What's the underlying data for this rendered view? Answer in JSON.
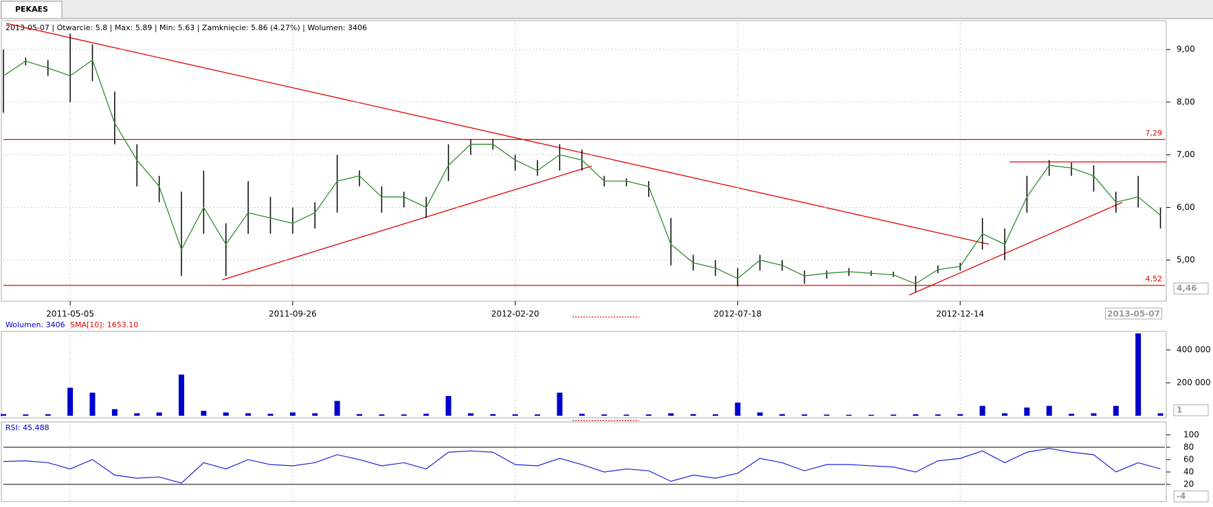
{
  "tab": "PEKAES",
  "chart_data": [
    {
      "type": "range",
      "header": "2013-05-07 | Otwarcie: 5.8 | Max: 5.89 | Min: 5.63 | Zamknięcie: 5.86 (4.27%)  | Wolumen: 3406",
      "categories": [
        null,
        null,
        null,
        "2011-05-05",
        null,
        null,
        null,
        null,
        null,
        null,
        null,
        null,
        null,
        "2011-09-26",
        null,
        null,
        null,
        null,
        null,
        null,
        null,
        null,
        null,
        "2012-02-20",
        null,
        null,
        null,
        null,
        null,
        null,
        null,
        null,
        null,
        "2012-07-18",
        null,
        null,
        null,
        null,
        null,
        null,
        null,
        null,
        null,
        "2012-12-14",
        null,
        null,
        null,
        null,
        null,
        null,
        null,
        null,
        "2013-05-07"
      ],
      "high": [
        9.0,
        8.85,
        8.8,
        9.3,
        9.1,
        8.2,
        7.2,
        6.6,
        6.3,
        6.7,
        5.7,
        6.5,
        6.2,
        6.0,
        6.1,
        7.0,
        6.7,
        6.4,
        6.3,
        6.2,
        7.2,
        7.3,
        7.3,
        7.0,
        6.9,
        7.2,
        7.1,
        6.6,
        6.55,
        6.5,
        5.8,
        5.1,
        5.0,
        4.85,
        5.1,
        5.0,
        4.8,
        4.8,
        4.85,
        4.8,
        4.78,
        4.7,
        4.9,
        4.95,
        5.8,
        5.6,
        6.6,
        6.9,
        6.85,
        6.8,
        6.3,
        6.6,
        6.0
      ],
      "low": [
        7.8,
        8.7,
        8.5,
        8.0,
        8.4,
        7.2,
        6.4,
        6.1,
        4.7,
        5.5,
        4.7,
        5.5,
        5.5,
        5.5,
        5.6,
        5.9,
        6.4,
        5.9,
        6.0,
        5.8,
        6.5,
        7.0,
        7.1,
        6.7,
        6.6,
        6.7,
        6.7,
        6.4,
        6.4,
        6.2,
        4.9,
        4.8,
        4.7,
        4.5,
        4.8,
        4.8,
        4.55,
        4.65,
        4.7,
        4.7,
        4.68,
        4.4,
        4.75,
        4.8,
        5.2,
        5.0,
        5.9,
        6.6,
        6.6,
        6.3,
        5.9,
        6.0,
        5.6
      ],
      "sma": [
        8.5,
        8.78,
        8.65,
        8.5,
        8.8,
        7.6,
        6.9,
        6.4,
        5.2,
        6.0,
        5.3,
        5.9,
        5.8,
        5.7,
        5.9,
        6.5,
        6.6,
        6.2,
        6.2,
        6.0,
        6.8,
        7.2,
        7.2,
        6.9,
        6.7,
        7.0,
        6.9,
        6.5,
        6.5,
        6.4,
        5.3,
        4.95,
        4.85,
        4.65,
        5.0,
        4.9,
        4.7,
        4.75,
        4.78,
        4.75,
        4.72,
        4.55,
        4.82,
        4.88,
        5.5,
        5.3,
        6.2,
        6.8,
        6.75,
        6.6,
        6.1,
        6.2,
        5.85
      ],
      "bar_color": "#000000",
      "sma_color": "#2e8b2e",
      "level_color": "#e00000",
      "xlim": [
        0,
        52.2
      ],
      "ylim": [
        4.22,
        9.51
      ],
      "yticks": [
        {
          "value": 5,
          "label": "5,00"
        },
        {
          "value": 6,
          "label": "6,00"
        },
        {
          "value": 7,
          "label": "7,00"
        },
        {
          "value": 8,
          "label": "8,00"
        },
        {
          "value": 9,
          "label": "9,00"
        }
      ],
      "levels": [
        {
          "value": 7.29,
          "label": "7,29"
        },
        {
          "value": 4.52,
          "label": "4,52"
        }
      ],
      "marker": {
        "value": 4.46,
        "label": "4,46"
      },
      "grid": true
    },
    {
      "type": "bar",
      "header": "Wolumen: 3406",
      "header2": "SMA[10]: 1653.10",
      "values": [
        10000,
        8000,
        9000,
        170000,
        140000,
        40000,
        15000,
        20000,
        250000,
        30000,
        20000,
        15000,
        12000,
        20000,
        15000,
        90000,
        10000,
        8000,
        8000,
        12000,
        120000,
        15000,
        10000,
        9000,
        8000,
        140000,
        12000,
        8000,
        7000,
        8000,
        15000,
        10000,
        9000,
        80000,
        20000,
        10000,
        8000,
        7000,
        6000,
        6000,
        7000,
        9000,
        8000,
        10000,
        60000,
        15000,
        50000,
        60000,
        12000,
        15000,
        60000,
        500000,
        15000
      ],
      "color": "#0000cc",
      "ylim": [
        -12500,
        504000
      ],
      "yticks": [
        {
          "value": 200000,
          "label": "200 000"
        },
        {
          "value": 400000,
          "label": "400 000"
        }
      ],
      "marker": {
        "value": 1,
        "label": "1"
      }
    },
    {
      "type": "line",
      "header": "RSI: 45.488",
      "values": [
        57,
        58,
        55,
        45,
        60,
        35,
        30,
        32,
        22,
        55,
        45,
        60,
        52,
        50,
        55,
        68,
        60,
        50,
        55,
        45,
        72,
        74,
        72,
        52,
        50,
        62,
        52,
        40,
        45,
        42,
        25,
        35,
        30,
        38,
        62,
        55,
        42,
        52,
        52,
        50,
        48,
        40,
        58,
        62,
        74,
        55,
        72,
        78,
        72,
        68,
        40,
        55,
        45
      ],
      "color": "#2020dd",
      "ylim": [
        -7.7,
        118.7
      ],
      "yticks": [
        20,
        40,
        60,
        80,
        100
      ],
      "levels": [
        20,
        80
      ],
      "marker": {
        "value": -4,
        "label": "-4"
      }
    }
  ]
}
